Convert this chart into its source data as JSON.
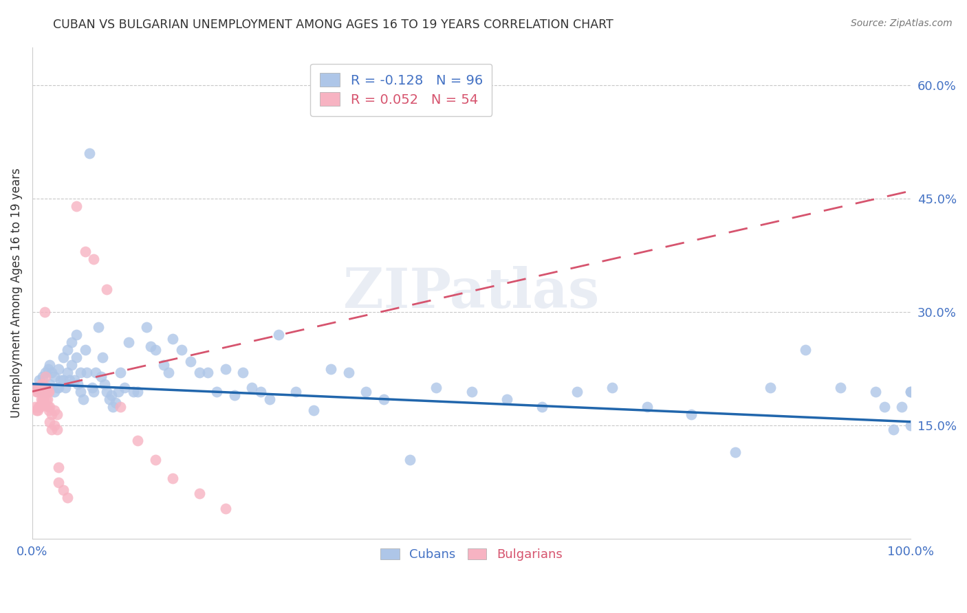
{
  "title": "CUBAN VS BULGARIAN UNEMPLOYMENT AMONG AGES 16 TO 19 YEARS CORRELATION CHART",
  "source": "Source: ZipAtlas.com",
  "ylabel": "Unemployment Among Ages 16 to 19 years",
  "xlim": [
    0,
    1.0
  ],
  "ylim": [
    0.0,
    0.65
  ],
  "yticks": [
    0.15,
    0.3,
    0.45,
    0.6
  ],
  "ytick_labels": [
    "15.0%",
    "30.0%",
    "45.0%",
    "60.0%"
  ],
  "xticks": [
    0.0,
    1.0
  ],
  "xtick_labels": [
    "0.0%",
    "100.0%"
  ],
  "cuban_color": "#aec6e8",
  "bulgarian_color": "#f7b3c2",
  "cuban_line_color": "#2166ac",
  "bulgarian_line_color": "#d6546e",
  "tick_color": "#4472c4",
  "legend_cuban_r": "R = -0.128",
  "legend_cuban_n": "N = 96",
  "legend_bulgarian_r": "R = 0.052",
  "legend_bulgarian_n": "N = 54",
  "cuban_x": [
    0.005,
    0.008,
    0.01,
    0.012,
    0.015,
    0.015,
    0.018,
    0.02,
    0.02,
    0.022,
    0.025,
    0.025,
    0.028,
    0.03,
    0.03,
    0.032,
    0.035,
    0.035,
    0.038,
    0.04,
    0.04,
    0.042,
    0.045,
    0.045,
    0.048,
    0.05,
    0.05,
    0.052,
    0.055,
    0.055,
    0.058,
    0.06,
    0.062,
    0.065,
    0.068,
    0.07,
    0.072,
    0.075,
    0.078,
    0.08,
    0.082,
    0.085,
    0.088,
    0.09,
    0.092,
    0.095,
    0.098,
    0.1,
    0.105,
    0.11,
    0.115,
    0.12,
    0.13,
    0.135,
    0.14,
    0.15,
    0.155,
    0.16,
    0.17,
    0.18,
    0.19,
    0.2,
    0.21,
    0.22,
    0.23,
    0.24,
    0.25,
    0.26,
    0.27,
    0.28,
    0.3,
    0.32,
    0.34,
    0.36,
    0.38,
    0.4,
    0.43,
    0.46,
    0.5,
    0.54,
    0.58,
    0.62,
    0.66,
    0.7,
    0.75,
    0.8,
    0.84,
    0.88,
    0.92,
    0.96,
    0.97,
    0.98,
    0.99,
    1.0,
    1.0,
    1.0
  ],
  "cuban_y": [
    0.2,
    0.21,
    0.195,
    0.215,
    0.22,
    0.195,
    0.225,
    0.23,
    0.205,
    0.22,
    0.195,
    0.215,
    0.2,
    0.225,
    0.2,
    0.21,
    0.24,
    0.21,
    0.2,
    0.25,
    0.22,
    0.21,
    0.26,
    0.23,
    0.21,
    0.27,
    0.24,
    0.205,
    0.22,
    0.195,
    0.185,
    0.25,
    0.22,
    0.51,
    0.2,
    0.195,
    0.22,
    0.28,
    0.215,
    0.24,
    0.205,
    0.195,
    0.185,
    0.19,
    0.175,
    0.18,
    0.195,
    0.22,
    0.2,
    0.26,
    0.195,
    0.195,
    0.28,
    0.255,
    0.25,
    0.23,
    0.22,
    0.265,
    0.25,
    0.235,
    0.22,
    0.22,
    0.195,
    0.225,
    0.19,
    0.22,
    0.2,
    0.195,
    0.185,
    0.27,
    0.195,
    0.17,
    0.225,
    0.22,
    0.195,
    0.185,
    0.105,
    0.2,
    0.195,
    0.185,
    0.175,
    0.195,
    0.2,
    0.175,
    0.165,
    0.115,
    0.2,
    0.25,
    0.2,
    0.195,
    0.175,
    0.145,
    0.175,
    0.195,
    0.15,
    0.195
  ],
  "bulgarian_x": [
    0.003,
    0.003,
    0.005,
    0.005,
    0.006,
    0.006,
    0.007,
    0.007,
    0.008,
    0.008,
    0.009,
    0.009,
    0.01,
    0.01,
    0.011,
    0.011,
    0.012,
    0.012,
    0.013,
    0.013,
    0.014,
    0.014,
    0.015,
    0.015,
    0.016,
    0.016,
    0.017,
    0.017,
    0.018,
    0.018,
    0.019,
    0.019,
    0.02,
    0.02,
    0.022,
    0.022,
    0.025,
    0.025,
    0.028,
    0.028,
    0.03,
    0.03,
    0.035,
    0.04,
    0.05,
    0.06,
    0.07,
    0.085,
    0.1,
    0.12,
    0.14,
    0.16,
    0.19,
    0.22
  ],
  "bulgarian_y": [
    0.2,
    0.175,
    0.195,
    0.17,
    0.195,
    0.17,
    0.2,
    0.175,
    0.2,
    0.175,
    0.2,
    0.175,
    0.205,
    0.185,
    0.2,
    0.18,
    0.205,
    0.185,
    0.2,
    0.185,
    0.3,
    0.195,
    0.215,
    0.195,
    0.2,
    0.185,
    0.2,
    0.185,
    0.195,
    0.175,
    0.195,
    0.17,
    0.175,
    0.155,
    0.165,
    0.145,
    0.17,
    0.15,
    0.165,
    0.145,
    0.095,
    0.075,
    0.065,
    0.055,
    0.44,
    0.38,
    0.37,
    0.33,
    0.175,
    0.13,
    0.105,
    0.08,
    0.06,
    0.04
  ],
  "watermark": "ZIPatlas",
  "background_color": "#ffffff",
  "grid_color": "#c8c8c8"
}
